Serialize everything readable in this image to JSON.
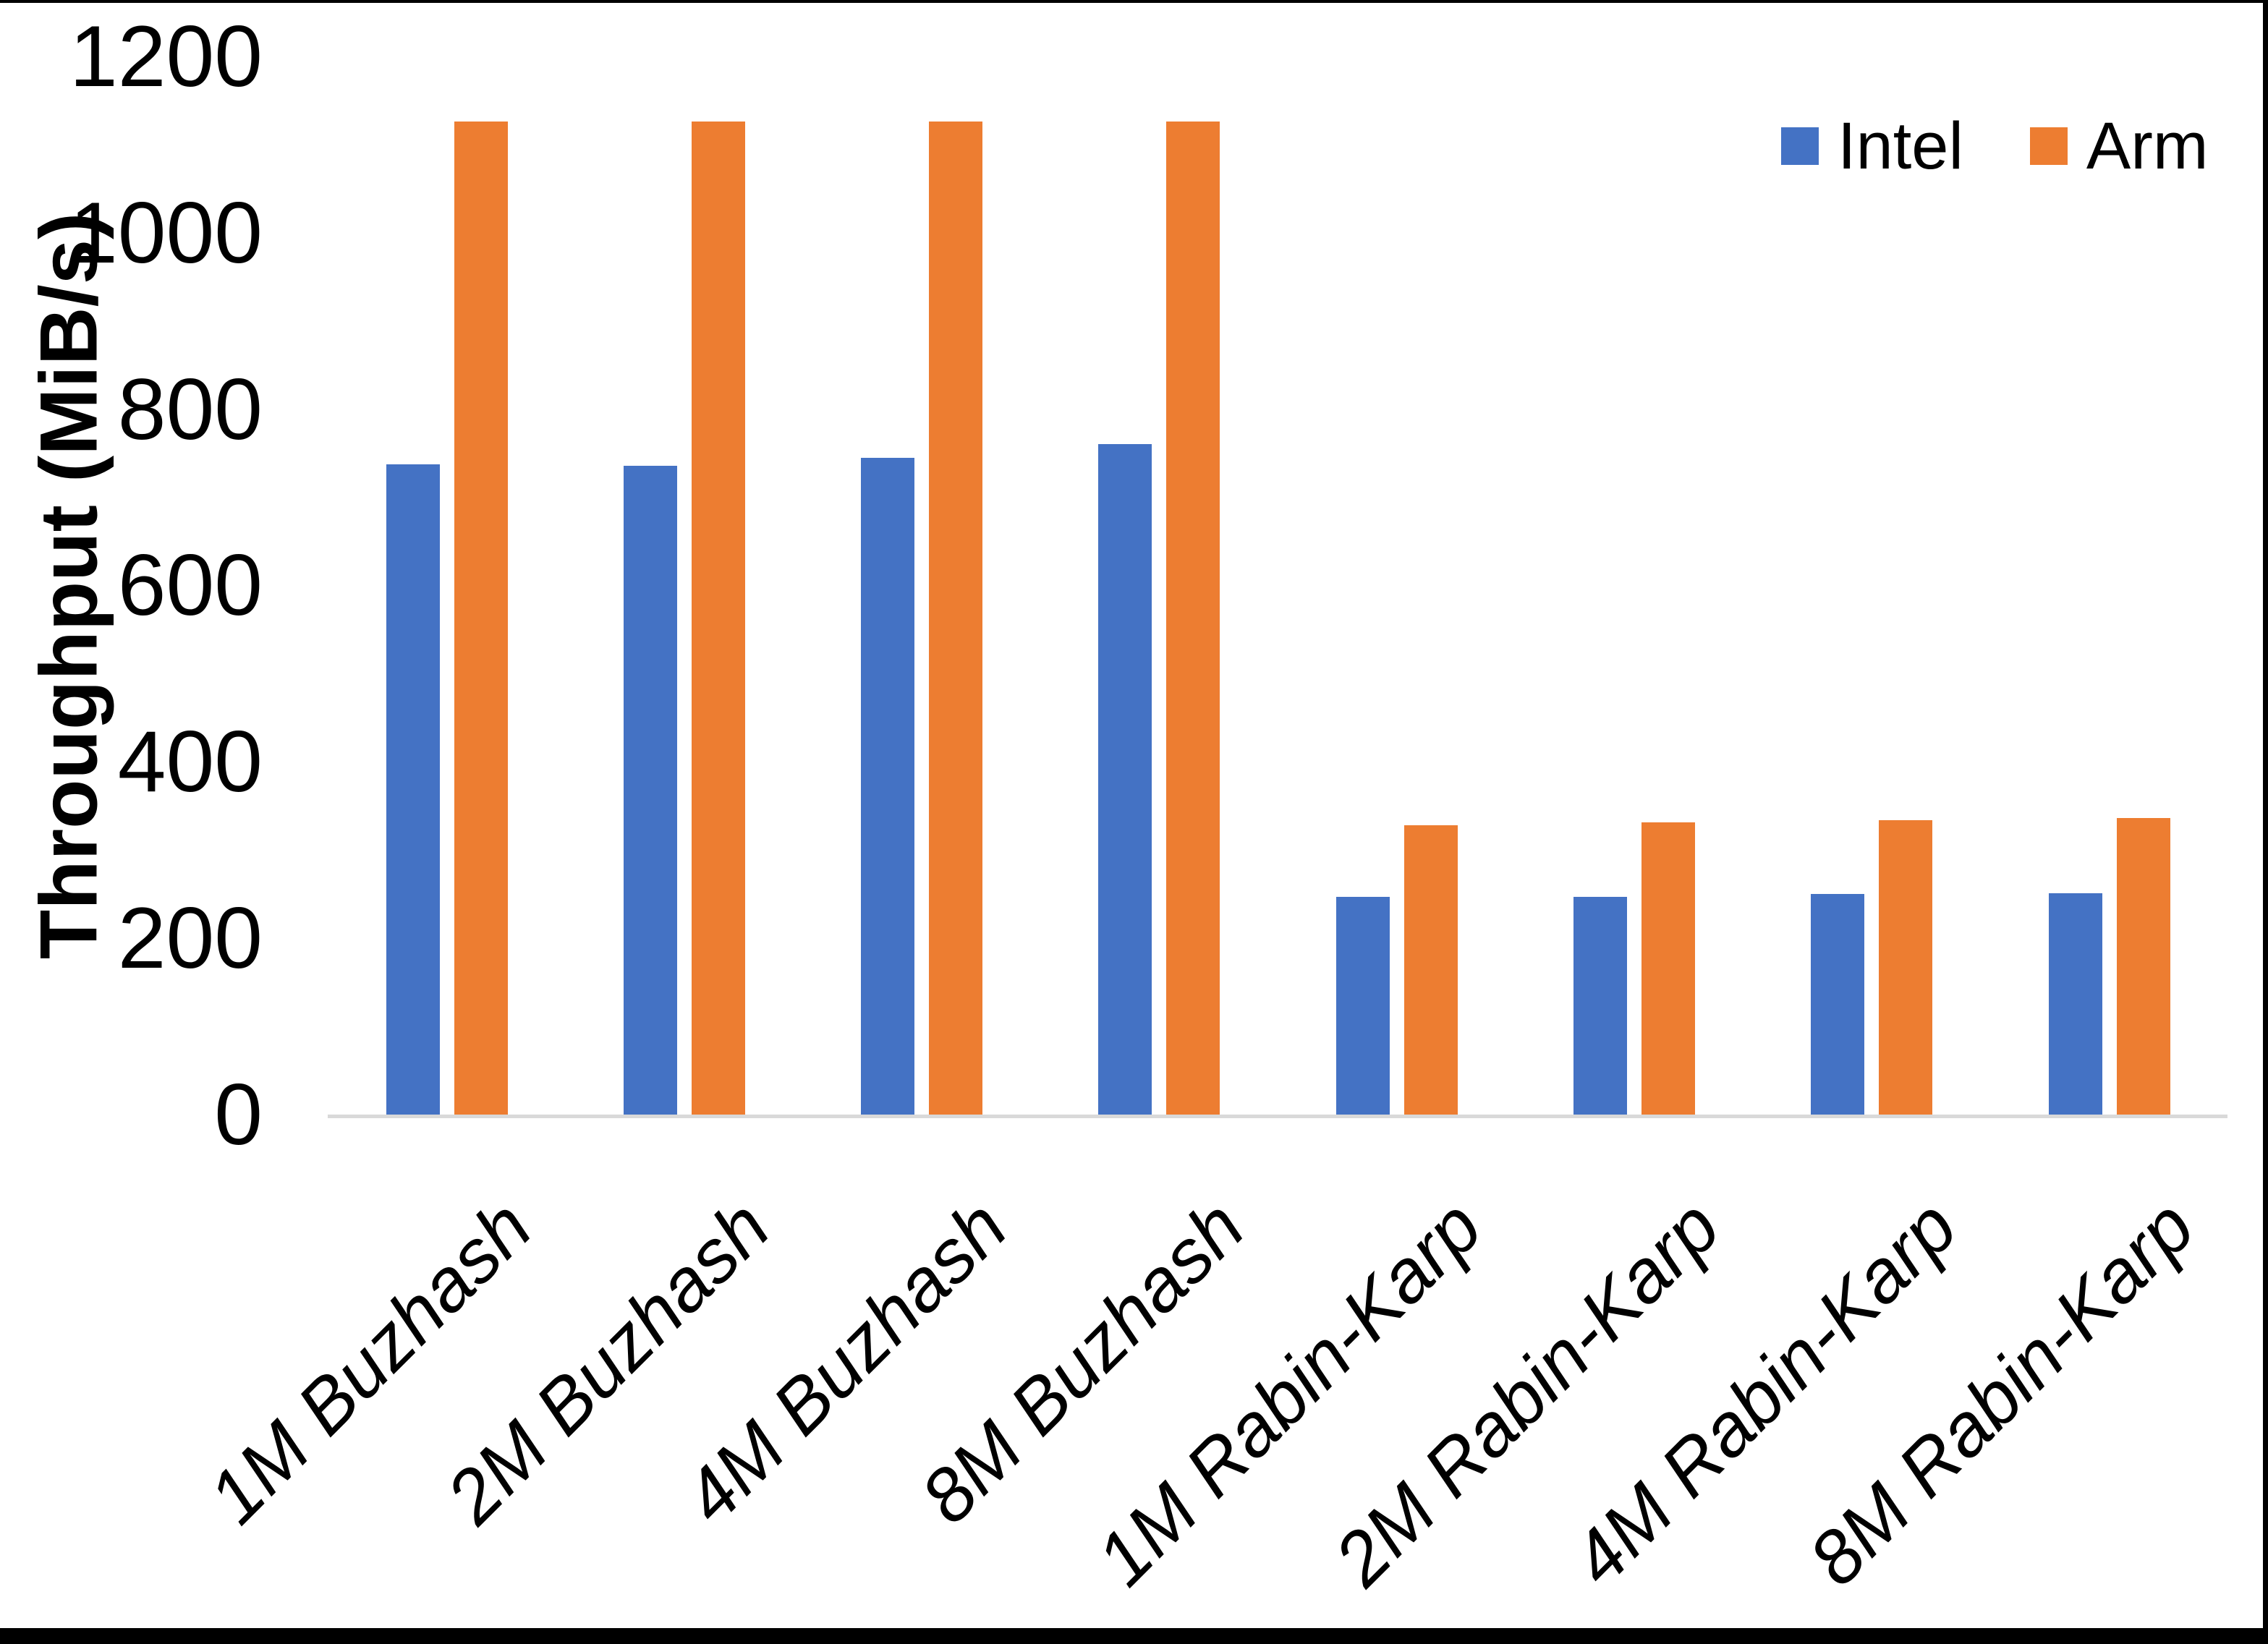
{
  "chart_data": {
    "type": "bar",
    "title": "",
    "xlabel": "",
    "ylabel": "Throughput (MiB/s)",
    "ylim": [
      0,
      1200
    ],
    "yticks": [
      0,
      200,
      400,
      600,
      800,
      1000,
      1200
    ],
    "grid": false,
    "legend_position": "top-right",
    "axis_line_color": "#D9D9D9",
    "categories": [
      "1M Buzhash",
      "2M Buzhash",
      "4M Buzhash",
      "8M Buzhash",
      "1M Rabin-Karp",
      "2M Rabin-Karp",
      "4M Rabin-Karp",
      "8M Rabin-Karp"
    ],
    "series": [
      {
        "name": "Intel",
        "color": "#4472C4",
        "values": [
          737,
          736,
          745,
          760,
          247,
          247,
          250,
          251
        ]
      },
      {
        "name": "Arm",
        "color": "#ED7D31",
        "values": [
          1126,
          1126,
          1126,
          1126,
          328,
          331,
          334,
          336
        ]
      }
    ]
  }
}
